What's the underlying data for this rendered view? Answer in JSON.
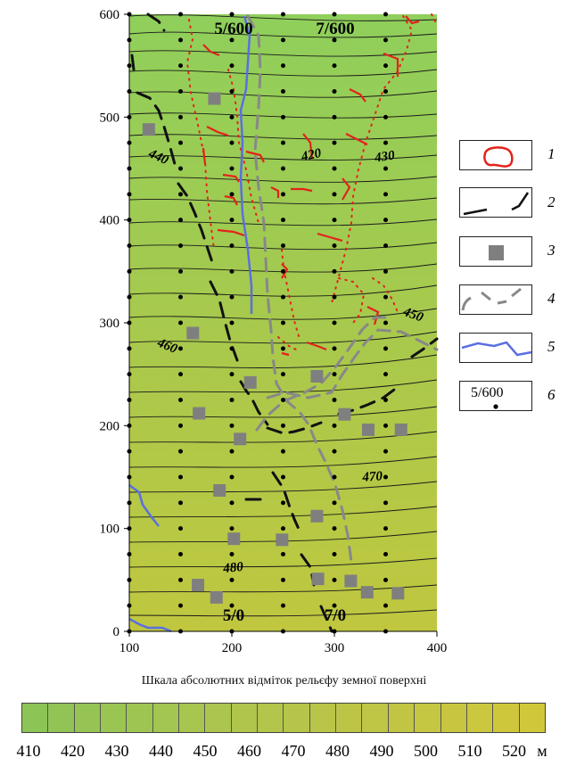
{
  "map": {
    "x_axis": {
      "ticks": [
        "100",
        "200",
        "300",
        "400"
      ],
      "range": [
        100,
        400
      ]
    },
    "y_axis": {
      "ticks": [
        "0",
        "100",
        "200",
        "300",
        "400",
        "500",
        "600"
      ],
      "range": [
        0,
        600
      ]
    },
    "contour_labels": [
      "420",
      "430",
      "440",
      "450",
      "460",
      "470",
      "480"
    ],
    "section_labels": [
      "5/600",
      "7/600",
      "5/0",
      "7/0"
    ],
    "colors": {
      "low": "#8dc456",
      "high": "#c5c63c",
      "contour": "#1a1a1a",
      "ore_contour": "#e2231a",
      "fault": "#111111",
      "sample": "#7f7f7f",
      "zone": "#888888",
      "river": "#5a6fe0"
    }
  },
  "legend": {
    "items": [
      {
        "number": "1",
        "symbol": "red-closed-contour"
      },
      {
        "number": "2",
        "symbol": "black-dashed-fault"
      },
      {
        "number": "3",
        "symbol": "gray-square"
      },
      {
        "number": "4",
        "symbol": "gray-dashed-line"
      },
      {
        "number": "5",
        "symbol": "blue-line"
      },
      {
        "number": "6",
        "symbol": "labelled-point",
        "label": "5/600"
      }
    ]
  },
  "scale": {
    "title": "Шкала абсолютних відміток рельєфу земної поверхні",
    "labels": [
      "410",
      "420",
      "430",
      "440",
      "450",
      "460",
      "470",
      "480",
      "490",
      "500",
      "510",
      "520"
    ],
    "unit": "м",
    "colors": [
      "#8dc456",
      "#91c455",
      "#96c454",
      "#9ac553",
      "#9ec552",
      "#a3c551",
      "#a7c54f",
      "#abc54e",
      "#afc54c",
      "#b3c54b",
      "#b6c549",
      "#b9c548",
      "#bcc546",
      "#bfc545",
      "#c2c543",
      "#c5c642",
      "#c8c640",
      "#cbc73e",
      "#cec73c",
      "#d0c83a"
    ]
  }
}
